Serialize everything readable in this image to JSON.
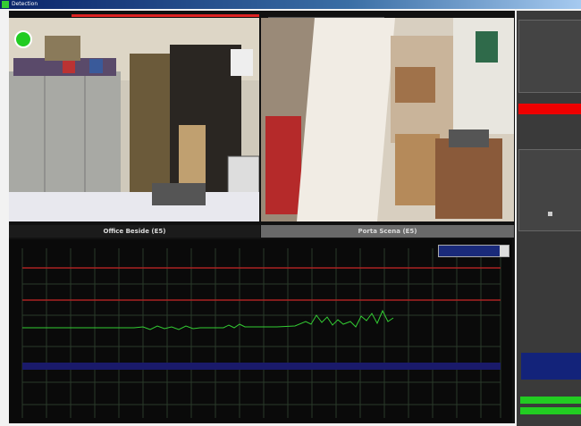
{
  "window": {
    "title": "Detection"
  },
  "cameras": [
    {
      "label": "Office Beside (E5)"
    },
    {
      "label": "Porta Scena (E5)"
    }
  ]
}
